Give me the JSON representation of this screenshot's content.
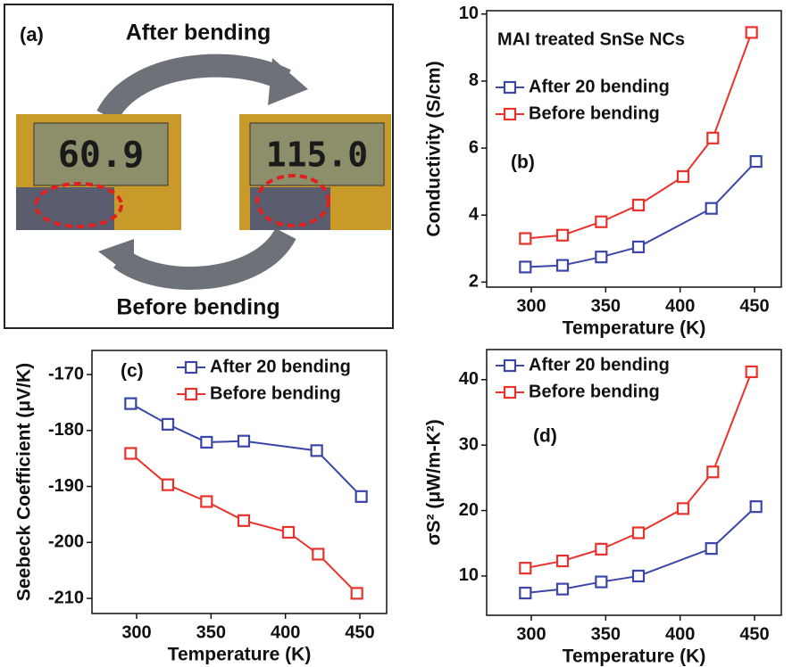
{
  "panel_a": {
    "label": "(a)",
    "top_caption": "After bending",
    "bottom_caption": "Before bending",
    "left_display": "60.9",
    "right_display": "115.0"
  },
  "chart_data": [
    {
      "type": "line",
      "panel_label": "(b)",
      "title": "MAI treated SnSe NCs",
      "x_label": "Temperature (K)",
      "y_label": "Conductivity (S/cm)",
      "xlim": [
        270,
        468
      ],
      "xticks": [
        300,
        350,
        400,
        450
      ],
      "ylim": [
        1.85,
        10.1
      ],
      "yticks": [
        2,
        4,
        6,
        8,
        10
      ],
      "legend": "upper left",
      "series": [
        {
          "name": "After 20 bending",
          "color": "#3a46a8",
          "x": [
            296,
            321,
            347,
            372,
            421,
            451
          ],
          "values": [
            2.45,
            2.5,
            2.75,
            3.05,
            4.2,
            5.6
          ]
        },
        {
          "name": "Before bending",
          "color": "#e8322b",
          "x": [
            296,
            321,
            347,
            372,
            402,
            422,
            448
          ],
          "values": [
            3.3,
            3.4,
            3.8,
            4.3,
            5.15,
            6.3,
            9.45
          ]
        }
      ]
    },
    {
      "type": "line",
      "panel_label": "(c)",
      "x_label": "Temperature (K)",
      "y_label": "Seebeck Coefficient (μV/K)",
      "xlim": [
        270,
        468
      ],
      "xticks": [
        300,
        350,
        400,
        450
      ],
      "ylim": [
        -212.7,
        -165.7
      ],
      "yticks": [
        -210,
        -200,
        -190,
        -180,
        -170
      ],
      "legend": "upper right",
      "series": [
        {
          "name": "After 20 bending",
          "color": "#3a46a8",
          "x": [
            296,
            321,
            347,
            372,
            421,
            451
          ],
          "values": [
            -175.2,
            -178.9,
            -182.1,
            -181.9,
            -183.6,
            -191.8
          ]
        },
        {
          "name": "Before bending",
          "color": "#e8322b",
          "x": [
            296,
            321,
            347,
            372,
            402,
            422,
            448
          ],
          "values": [
            -184.1,
            -189.7,
            -192.7,
            -196.1,
            -198.2,
            -202.1,
            -209.1
          ]
        }
      ]
    },
    {
      "type": "line",
      "panel_label": "(d)",
      "x_label": "Temperature (K)",
      "y_label": "σS² (μW/m-K²)",
      "xlim": [
        270,
        468
      ],
      "xticks": [
        300,
        350,
        400,
        450
      ],
      "ylim": [
        4,
        44.6
      ],
      "yticks": [
        10,
        20,
        30,
        40
      ],
      "legend": "upper left",
      "series": [
        {
          "name": "After 20 bending",
          "color": "#3a46a8",
          "x": [
            296,
            321,
            347,
            372,
            421,
            451
          ],
          "values": [
            7.4,
            8.0,
            9.1,
            10.0,
            14.2,
            20.6
          ]
        },
        {
          "name": "Before bending",
          "color": "#e8322b",
          "x": [
            296,
            321,
            347,
            372,
            402,
            422,
            448
          ],
          "values": [
            11.2,
            12.3,
            14.1,
            16.6,
            20.3,
            25.9,
            41.2
          ]
        }
      ]
    }
  ]
}
